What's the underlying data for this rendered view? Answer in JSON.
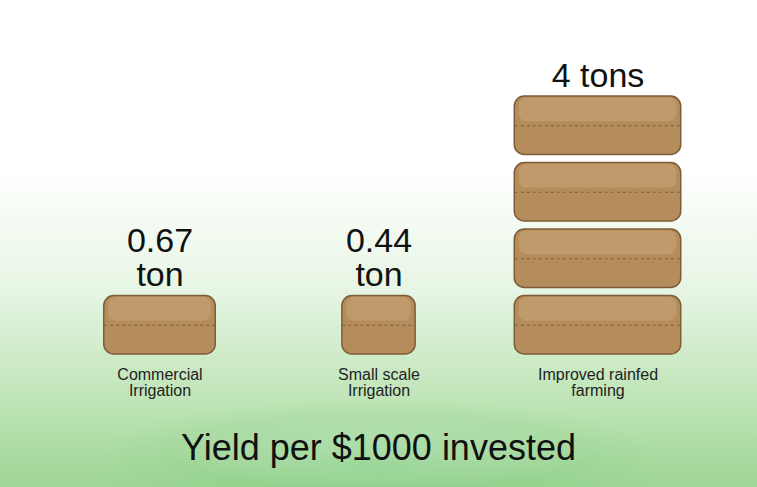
{
  "chart_data": {
    "type": "pictogram",
    "title": "Yield per $1000 invested",
    "categories": [
      "Commercial Irrigation",
      "Small scale Irrigation",
      "Improved rainfed farming"
    ],
    "values": [
      0.67,
      0.44,
      4
    ],
    "value_labels": [
      "0.67 ton",
      "0.44 ton",
      "4 tons"
    ],
    "data_labels": true,
    "tick_labels": false,
    "color": "#b58c5c"
  }
}
